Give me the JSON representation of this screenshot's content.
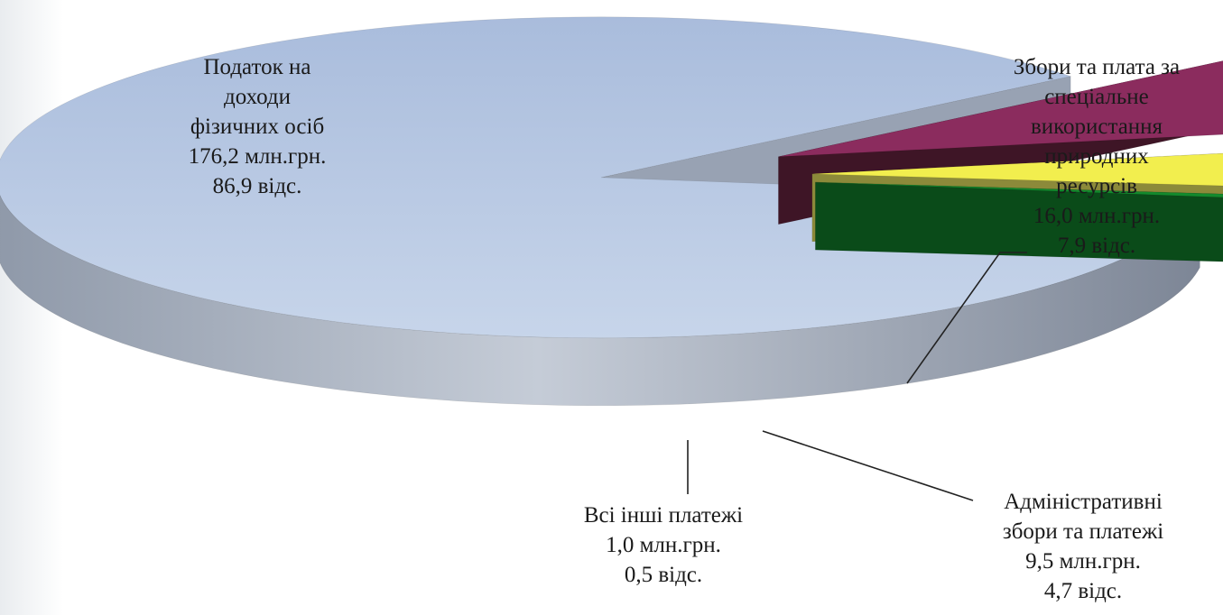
{
  "chart_data": {
    "type": "pie",
    "style": "3d-exploded",
    "colors": {
      "top": [
        "#b7c8e3",
        "#8b2c5e",
        "#f2ee4e",
        "#138a2d"
      ],
      "side": [
        "#a3adbd",
        "#3e1526",
        "#8c8a3a",
        "#0a4b19"
      ]
    },
    "slices": [
      {
        "lines": [
          "Податок на",
          "доходи",
          "фізичних  осіб",
          "176,2 млн.грн.",
          "86,9 відс."
        ],
        "value": 176.2,
        "percent": 86.9
      },
      {
        "lines": [
          "Збори та плата за",
          "спеціальне",
          "використання",
          "природних",
          "ресурсів",
          "16,0 млн.грн.",
          "7,9 відс."
        ],
        "value": 16.0,
        "percent": 7.9
      },
      {
        "lines": [
          "Адміністративні",
          "збори та платежі",
          "9,5 млн.грн.",
          "4,7 відс."
        ],
        "value": 9.5,
        "percent": 4.7
      },
      {
        "lines": [
          "Всі інші  платежі",
          "1,0 млн.грн.",
          "0,5 відс."
        ],
        "value": 1.0,
        "percent": 0.5
      }
    ]
  }
}
